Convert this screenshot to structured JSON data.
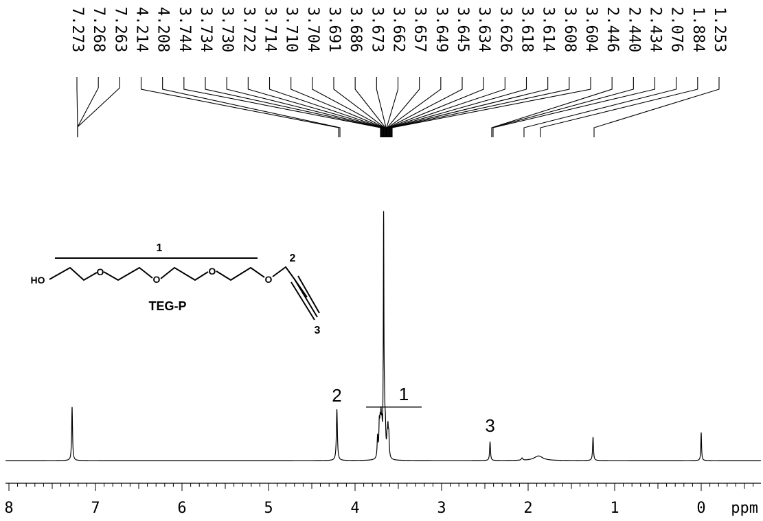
{
  "chart_data": {
    "type": "line",
    "title": "",
    "xlabel": "ppm",
    "ylabel": "",
    "x_axis": {
      "direction": "reversed",
      "xlim": [
        8.1,
        -0.7
      ],
      "major_ticks": [
        8,
        7,
        6,
        5,
        4,
        3,
        2,
        1,
        0
      ],
      "tick_labels": [
        "8",
        "7",
        "6",
        "5",
        "4",
        "3",
        "2",
        "1",
        "0"
      ],
      "minor_step": 0.1
    },
    "grid": false,
    "legend": "none",
    "peak_list": [
      "7.273",
      "7.268",
      "7.263",
      "4.214",
      "4.208",
      "3.744",
      "3.734",
      "3.730",
      "3.722",
      "3.714",
      "3.710",
      "3.704",
      "3.691",
      "3.686",
      "3.673",
      "3.662",
      "3.657",
      "3.649",
      "3.645",
      "3.634",
      "3.626",
      "3.618",
      "3.614",
      "3.608",
      "3.604",
      "2.446",
      "2.440",
      "2.434",
      "2.076",
      "1.884",
      "1.253"
    ],
    "series": [
      {
        "values_note": "relative intensity, tallest peak = 1.0",
        "peaks": [
          {
            "ppm": 7.27,
            "height": 0.23,
            "width": 0.006
          },
          {
            "ppm": 4.21,
            "height": 0.22,
            "width": 0.007
          },
          {
            "ppm": 3.74,
            "height": 0.09,
            "width": 0.006
          },
          {
            "ppm": 3.72,
            "height": 0.13,
            "width": 0.006
          },
          {
            "ppm": 3.71,
            "height": 0.11,
            "width": 0.006
          },
          {
            "ppm": 3.7,
            "height": 0.14,
            "width": 0.006
          },
          {
            "ppm": 3.69,
            "height": 0.1,
            "width": 0.006
          },
          {
            "ppm": 3.67,
            "height": 1.0,
            "width": 0.004
          },
          {
            "ppm": 3.66,
            "height": 0.16,
            "width": 0.006
          },
          {
            "ppm": 3.65,
            "height": 0.11,
            "width": 0.006
          },
          {
            "ppm": 3.63,
            "height": 0.07,
            "width": 0.006
          },
          {
            "ppm": 3.62,
            "height": 0.11,
            "width": 0.006
          },
          {
            "ppm": 3.61,
            "height": 0.09,
            "width": 0.006
          },
          {
            "ppm": 2.44,
            "height": 0.08,
            "width": 0.006
          },
          {
            "ppm": 2.07,
            "height": 0.01,
            "width": 0.01
          },
          {
            "ppm": 1.88,
            "height": 0.02,
            "width": 0.06
          },
          {
            "ppm": 1.25,
            "height": 0.1,
            "width": 0.006
          },
          {
            "ppm": 0.0,
            "height": 0.12,
            "width": 0.005
          }
        ]
      }
    ],
    "annotations": [
      {
        "label": "2",
        "ppm": 4.21
      },
      {
        "label": "1",
        "ppm": 3.46
      },
      {
        "label": "3",
        "ppm": 2.44
      }
    ],
    "structure": {
      "name": "TEG-P",
      "end_group": "HO",
      "ether_labels": [
        "O",
        "O",
        "O",
        "O",
        "O"
      ],
      "positions": [
        "1",
        "2",
        "3"
      ]
    }
  }
}
